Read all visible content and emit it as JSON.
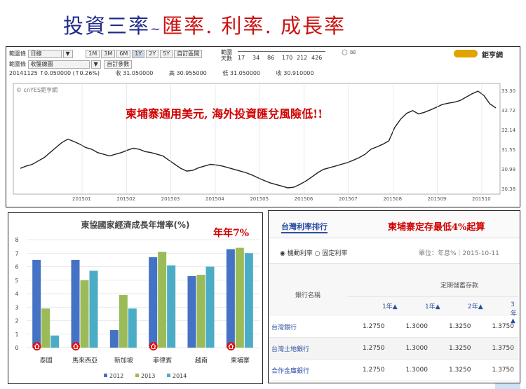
{
  "title": {
    "main": "投資三率",
    "sep": "~",
    "sub": "匯率. 利率. 成長率"
  },
  "top_chart": {
    "toolbar": {
      "row1_label": "範圍條",
      "product": "日線",
      "ranges": [
        "1M",
        "3M",
        "6M",
        "1Y",
        "2Y",
        "5Y",
        "自訂區間"
      ],
      "selected_range": "1Y",
      "days_label1": "範圍",
      "days_label2": "天數",
      "days": [
        "17",
        "34",
        "86",
        "170",
        "212",
        "426"
      ],
      "row2_label": "範圍條",
      "chart_type": "收盤線圖",
      "settings_button": "自訂參數",
      "info": "20141125 ↑0.050000 (↑0.26%)",
      "open": "收 31.050000",
      "high": "高 30.955000",
      "low": "低 31.050000",
      "close": "收 30.910000"
    },
    "logo": "鉅亨網",
    "watermark": "© cnYES鉅亨網",
    "annotation": "柬埔寨通用美元, 海外投資匯兌風險低!!",
    "y_ticks": [
      "33.30",
      "32.72",
      "32.14",
      "31.55",
      "30.98",
      "30.38"
    ],
    "x_ticks": [
      "201501",
      "201502",
      "201503",
      "201504",
      "201505",
      "201506",
      "201507",
      "201508",
      "201509",
      "201510"
    ]
  },
  "bar_chart": {
    "annotation": "年年7%",
    "chart_data": {
      "type": "bar",
      "title": "東協國家經濟成長年增率(%)",
      "categories": [
        "泰國",
        "馬來西亞",
        "新加坡",
        "菲律賓",
        "越南",
        "柬埔寨"
      ],
      "series": [
        {
          "name": "2012",
          "values": [
            6.5,
            6.5,
            1.3,
            6.7,
            5.3,
            7.3
          ]
        },
        {
          "name": "2013",
          "values": [
            2.9,
            5.0,
            3.9,
            7.1,
            5.4,
            7.4
          ]
        },
        {
          "name": "2014",
          "values": [
            0.9,
            5.7,
            2.9,
            6.1,
            6.0,
            7.0
          ]
        }
      ],
      "ylim": [
        0,
        8
      ],
      "y_ticks": [
        "0",
        "1",
        "2",
        "3",
        "4",
        "5",
        "6",
        "7",
        "8"
      ],
      "colors": [
        "#4472c4",
        "#9bbb59",
        "#4bacc6"
      ],
      "legend": "bottom"
    }
  },
  "rate_panel": {
    "tab_title": "台灣利率排行",
    "annotation": "柬埔寨定存最低4%起算",
    "radio_float": "機動利率",
    "radio_fixed": "固定利率",
    "unit": "單位：年息%｜2015-10-11",
    "col_bank": "銀行名稱",
    "col_group": "定期儲蓄存款",
    "periods": [
      "1年▲",
      "1年▲",
      "2年▲",
      "3年▲"
    ],
    "rows": [
      {
        "bank": "台灣銀行",
        "r": [
          "1.2750",
          "1.3000",
          "1.3250",
          "1.3750"
        ]
      },
      {
        "bank": "台灣土地銀行",
        "r": [
          "1.2750",
          "1.3000",
          "1.3250",
          "1.3750"
        ]
      },
      {
        "bank": "合作金庫銀行",
        "r": [
          "1.2750",
          "1.3000",
          "1.3250",
          "1.3750"
        ]
      }
    ]
  }
}
